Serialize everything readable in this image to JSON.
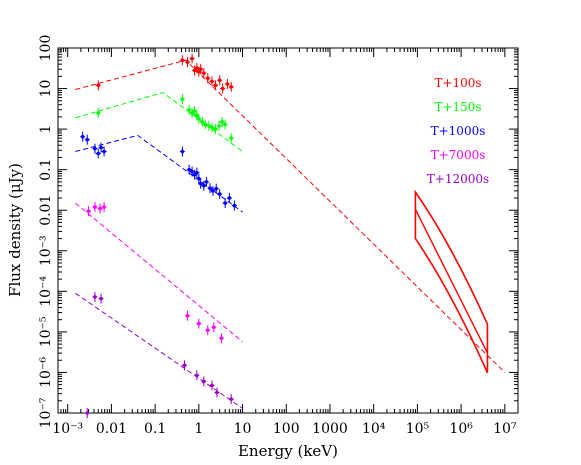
{
  "chart_data": {
    "type": "scatter",
    "xlabel": "Energy (keV)",
    "ylabel": "Flux density (μJy)",
    "x_scale": "log",
    "y_scale": "log",
    "xlim": [
      0.0006,
      20000000
    ],
    "ylim": [
      1e-07,
      100
    ],
    "grid": false,
    "legend_position": "right",
    "x_ticks": [
      "10⁻³",
      "0.01",
      "0.1",
      "1",
      "10",
      "100",
      "1000",
      "10⁴",
      "10⁵",
      "10⁶",
      "10⁷"
    ],
    "y_ticks": [
      "10⁻⁷",
      "10⁻⁶",
      "10⁻⁵",
      "10⁻⁴",
      "10⁻³",
      "0.01",
      "0.1",
      "1",
      "10",
      "100"
    ],
    "series": [
      {
        "name": "T+100s",
        "color": "#ff0000",
        "model": [
          [
            0.0015,
            9.5
          ],
          [
            0.5,
            50
          ],
          [
            10000000,
            1e-06
          ]
        ],
        "points": [
          [
            0.005,
            12
          ],
          [
            0.42,
            50
          ],
          [
            0.55,
            45
          ],
          [
            0.7,
            55
          ],
          [
            0.8,
            28
          ],
          [
            0.9,
            32
          ],
          [
            1.0,
            26
          ],
          [
            1.1,
            30
          ],
          [
            1.3,
            24
          ],
          [
            1.6,
            18
          ],
          [
            2.0,
            15
          ],
          [
            2.4,
            12
          ],
          [
            3.0,
            16
          ],
          [
            3.5,
            10
          ],
          [
            4.5,
            13
          ],
          [
            5.5,
            11
          ]
        ],
        "xray_bowtie": {
          "x": [
            90000,
            4000000
          ],
          "upper": [
            0.028,
            1.55e-05
          ],
          "lower": [
            0.002,
            9.8e-07
          ],
          "mid": [
            0.0105,
            3e-06
          ]
        }
      },
      {
        "name": "T+150s",
        "color": "#00ff00",
        "model": [
          [
            0.0015,
            1.9
          ],
          [
            0.15,
            8
          ],
          [
            10,
            0.28
          ]
        ],
        "points": [
          [
            0.005,
            2.5
          ],
          [
            0.42,
            5.5
          ],
          [
            0.6,
            3
          ],
          [
            0.7,
            2.5
          ],
          [
            0.8,
            2.8
          ],
          [
            0.9,
            2.2
          ],
          [
            1.0,
            1.8
          ],
          [
            1.2,
            1.5
          ],
          [
            1.4,
            1.3
          ],
          [
            1.7,
            1.2
          ],
          [
            2.0,
            1.1
          ],
          [
            2.4,
            1.0
          ],
          [
            2.9,
            1.2
          ],
          [
            3.4,
            1.5
          ],
          [
            4.0,
            1.3
          ],
          [
            5.5,
            0.6
          ]
        ]
      },
      {
        "name": "T+1000s",
        "color": "#0000ff",
        "model": [
          [
            0.0015,
            0.28
          ],
          [
            0.04,
            0.7
          ],
          [
            10,
            0.009
          ]
        ],
        "points": [
          [
            0.0022,
            0.65
          ],
          [
            0.0028,
            0.55
          ],
          [
            0.0042,
            0.33
          ],
          [
            0.005,
            0.25
          ],
          [
            0.0058,
            0.35
          ],
          [
            0.0068,
            0.28
          ],
          [
            0.42,
            0.28
          ],
          [
            0.6,
            0.1
          ],
          [
            0.7,
            0.09
          ],
          [
            0.8,
            0.075
          ],
          [
            0.9,
            0.085
          ],
          [
            1.0,
            0.06
          ],
          [
            1.1,
            0.045
          ],
          [
            1.3,
            0.04
          ],
          [
            1.5,
            0.05
          ],
          [
            1.8,
            0.035
          ],
          [
            2.1,
            0.03
          ],
          [
            2.5,
            0.034
          ],
          [
            3.0,
            0.025
          ],
          [
            4.0,
            0.015
          ],
          [
            5.0,
            0.02
          ],
          [
            6.5,
            0.013
          ]
        ]
      },
      {
        "name": "T+7000s",
        "color": "#ff00ff",
        "model": [
          [
            0.0015,
            0.015
          ],
          [
            10,
            5.7e-06
          ]
        ],
        "points": [
          [
            0.003,
            0.0095
          ],
          [
            0.0042,
            0.012
          ],
          [
            0.0055,
            0.011
          ],
          [
            0.0068,
            0.012
          ],
          [
            0.55,
            2.5e-05
          ],
          [
            1.0,
            1.6e-05
          ],
          [
            1.6,
            1.1e-05
          ],
          [
            2.2,
            1.3e-05
          ],
          [
            3.3,
            7e-06
          ]
        ]
      },
      {
        "name": "T+12000s",
        "color": "#9900cc",
        "model": [
          [
            0.0015,
            9e-05
          ],
          [
            10,
            1.3e-07
          ]
        ],
        "points": [
          [
            0.0028,
            1e-07
          ],
          [
            0.0042,
            7.3e-05
          ],
          [
            0.0058,
            6.6e-05
          ],
          [
            0.47,
            1.5e-06
          ],
          [
            0.9,
            8.5e-07
          ],
          [
            1.3,
            6e-07
          ],
          [
            2.0,
            4.8e-07
          ],
          [
            2.6,
            3.2e-07
          ],
          [
            5.5,
            2.2e-07
          ]
        ]
      }
    ],
    "legend": [
      "T+100s",
      "T+150s",
      "T+1000s",
      "T+7000s",
      "T+12000s"
    ]
  }
}
